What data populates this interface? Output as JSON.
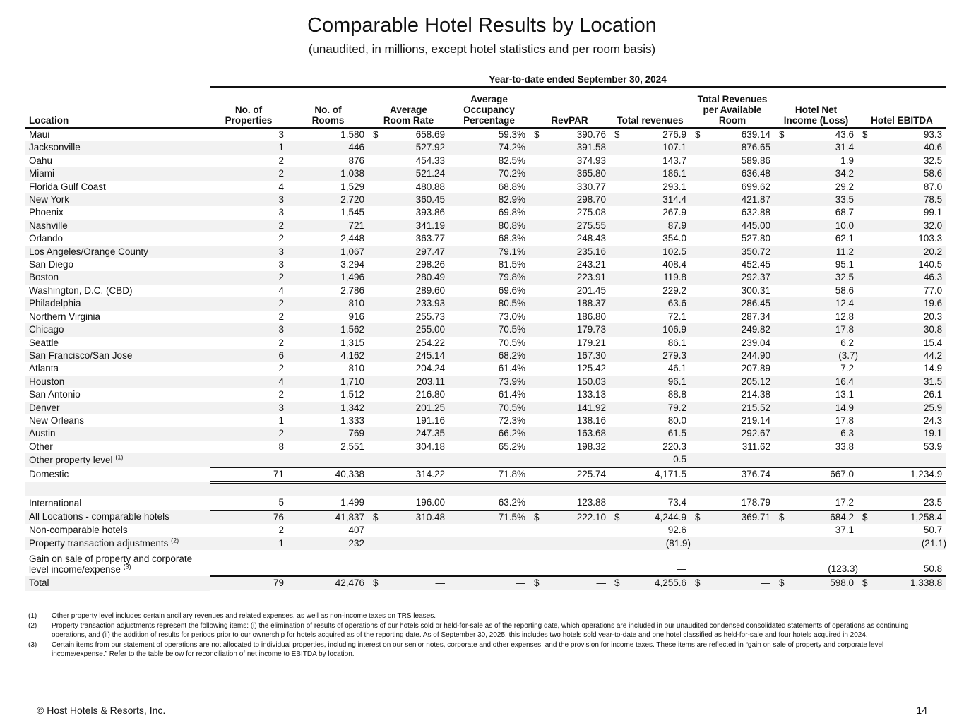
{
  "title": "Comparable Hotel Results by Location",
  "subtitle": "(unaudited, in millions, except hotel statistics and per room basis)",
  "period": "Year-to-date ended September 30, 2024",
  "columns": [
    "Location",
    "No. of\nProperties",
    "No. of\nRooms",
    "Average\nRoom Rate",
    "Average\nOccupancy\nPercentage",
    "RevPAR",
    "Total revenues",
    "Total Revenues\nper Available\nRoom",
    "Hotel Net\nIncome (Loss)",
    "Hotel EBITDA"
  ],
  "dollar_sign": "$",
  "rows": [
    {
      "loc": "Maui",
      "v": [
        "3",
        "1,580",
        "658.69",
        "59.3%",
        "390.76",
        "276.9",
        "639.14",
        "43.6",
        "93.3"
      ],
      "dollar": true
    },
    {
      "loc": "Jacksonville",
      "v": [
        "1",
        "446",
        "527.92",
        "74.2%",
        "391.58",
        "107.1",
        "876.65",
        "31.4",
        "40.6"
      ],
      "shade": true
    },
    {
      "loc": "Oahu",
      "v": [
        "2",
        "876",
        "454.33",
        "82.5%",
        "374.93",
        "143.7",
        "589.86",
        "1.9",
        "32.5"
      ]
    },
    {
      "loc": "Miami",
      "v": [
        "2",
        "1,038",
        "521.24",
        "70.2%",
        "365.80",
        "186.1",
        "636.48",
        "34.2",
        "58.6"
      ],
      "shade": true
    },
    {
      "loc": "Florida Gulf Coast",
      "v": [
        "4",
        "1,529",
        "480.88",
        "68.8%",
        "330.77",
        "293.1",
        "699.62",
        "29.2",
        "87.0"
      ]
    },
    {
      "loc": "New York",
      "v": [
        "3",
        "2,720",
        "360.45",
        "82.9%",
        "298.70",
        "314.4",
        "421.87",
        "33.5",
        "78.5"
      ],
      "shade": true
    },
    {
      "loc": "Phoenix",
      "v": [
        "3",
        "1,545",
        "393.86",
        "69.8%",
        "275.08",
        "267.9",
        "632.88",
        "68.7",
        "99.1"
      ]
    },
    {
      "loc": "Nashville",
      "v": [
        "2",
        "721",
        "341.19",
        "80.8%",
        "275.55",
        "87.9",
        "445.00",
        "10.0",
        "32.0"
      ],
      "shade": true
    },
    {
      "loc": "Orlando",
      "v": [
        "2",
        "2,448",
        "363.77",
        "68.3%",
        "248.43",
        "354.0",
        "527.80",
        "62.1",
        "103.3"
      ]
    },
    {
      "loc": "Los Angeles/Orange County",
      "v": [
        "3",
        "1,067",
        "297.47",
        "79.1%",
        "235.16",
        "102.5",
        "350.72",
        "11.2",
        "20.2"
      ],
      "shade": true
    },
    {
      "loc": "San Diego",
      "v": [
        "3",
        "3,294",
        "298.26",
        "81.5%",
        "243.21",
        "408.4",
        "452.45",
        "95.1",
        "140.5"
      ]
    },
    {
      "loc": "Boston",
      "v": [
        "2",
        "1,496",
        "280.49",
        "79.8%",
        "223.91",
        "119.8",
        "292.37",
        "32.5",
        "46.3"
      ],
      "shade": true
    },
    {
      "loc": "Washington, D.C. (CBD)",
      "v": [
        "4",
        "2,786",
        "289.60",
        "69.6%",
        "201.45",
        "229.2",
        "300.31",
        "58.6",
        "77.0"
      ]
    },
    {
      "loc": "Philadelphia",
      "v": [
        "2",
        "810",
        "233.93",
        "80.5%",
        "188.37",
        "63.6",
        "286.45",
        "12.4",
        "19.6"
      ],
      "shade": true
    },
    {
      "loc": "Northern Virginia",
      "v": [
        "2",
        "916",
        "255.73",
        "73.0%",
        "186.80",
        "72.1",
        "287.34",
        "12.8",
        "20.3"
      ]
    },
    {
      "loc": "Chicago",
      "v": [
        "3",
        "1,562",
        "255.00",
        "70.5%",
        "179.73",
        "106.9",
        "249.82",
        "17.8",
        "30.8"
      ],
      "shade": true
    },
    {
      "loc": "Seattle",
      "v": [
        "2",
        "1,315",
        "254.22",
        "70.5%",
        "179.21",
        "86.1",
        "239.04",
        "6.2",
        "15.4"
      ]
    },
    {
      "loc": "San Francisco/San Jose",
      "v": [
        "6",
        "4,162",
        "245.14",
        "68.2%",
        "167.30",
        "279.3",
        "244.90",
        "(3.7)",
        "44.2"
      ],
      "shade": true
    },
    {
      "loc": "Atlanta",
      "v": [
        "2",
        "810",
        "204.24",
        "61.4%",
        "125.42",
        "46.1",
        "207.89",
        "7.2",
        "14.9"
      ]
    },
    {
      "loc": "Houston",
      "v": [
        "4",
        "1,710",
        "203.11",
        "73.9%",
        "150.03",
        "96.1",
        "205.12",
        "16.4",
        "31.5"
      ],
      "shade": true
    },
    {
      "loc": "San Antonio",
      "v": [
        "2",
        "1,512",
        "216.80",
        "61.4%",
        "133.13",
        "88.8",
        "214.38",
        "13.1",
        "26.1"
      ]
    },
    {
      "loc": "Denver",
      "v": [
        "3",
        "1,342",
        "201.25",
        "70.5%",
        "141.92",
        "79.2",
        "215.52",
        "14.9",
        "25.9"
      ],
      "shade": true
    },
    {
      "loc": "New Orleans",
      "v": [
        "1",
        "1,333",
        "191.16",
        "72.3%",
        "138.16",
        "80.0",
        "219.14",
        "17.8",
        "24.3"
      ]
    },
    {
      "loc": "Austin",
      "v": [
        "2",
        "769",
        "247.35",
        "66.2%",
        "163.68",
        "61.5",
        "292.67",
        "6.3",
        "19.1"
      ],
      "shade": true
    },
    {
      "loc": "Other",
      "v": [
        "8",
        "2,551",
        "304.18",
        "65.2%",
        "198.32",
        "220.3",
        "311.62",
        "33.8",
        "53.9"
      ]
    },
    {
      "loc": "Other property level",
      "sup": "(1)",
      "v": [
        "",
        "",
        "",
        "",
        "",
        "0.5",
        "",
        "—",
        "—"
      ],
      "shade": true
    },
    {
      "loc": "Domestic",
      "v": [
        "71",
        "40,338",
        "314.22",
        "71.8%",
        "225.74",
        "4,171.5",
        "376.74",
        "667.0",
        "1,234.9"
      ],
      "topLine": true,
      "dblLine": true
    },
    {
      "loc": "",
      "v": [
        "",
        "",
        "",
        "",
        "",
        "",
        "",
        "",
        ""
      ],
      "shade": true
    },
    {
      "loc": "International",
      "v": [
        "5",
        "1,499",
        "196.00",
        "63.2%",
        "123.88",
        "73.4",
        "178.79",
        "17.2",
        "23.5"
      ]
    },
    {
      "loc": "All Locations - comparable hotels",
      "v": [
        "76",
        "41,837",
        "310.48",
        "71.5%",
        "222.10",
        "4,244.9",
        "369.71",
        "684.2",
        "1,258.4"
      ],
      "dollar": true,
      "topLine": true,
      "shade": true
    },
    {
      "loc": "Non-comparable hotels",
      "v": [
        "2",
        "407",
        "",
        "",
        "",
        "92.6",
        "",
        "37.1",
        "50.7"
      ]
    },
    {
      "loc": "Property transaction adjustments",
      "sup": "(2)",
      "v": [
        "1",
        "232",
        "",
        "",
        "",
        "(81.9)",
        "",
        "—",
        "(21.1)"
      ],
      "shade": true
    },
    {
      "loc": "Gain on sale of property and corporate level income/expense",
      "sup": "(3)",
      "v": [
        "",
        "",
        "",
        "",
        "",
        "—",
        "",
        "(123.3)",
        "50.8"
      ],
      "tall": true
    },
    {
      "loc": "Total",
      "v": [
        "79",
        "42,476",
        "—",
        "—",
        "—",
        "4,255.6",
        "—",
        "598.0",
        "1,338.8"
      ],
      "dollar": true,
      "topLine": true,
      "dblLine": true,
      "shade": true
    }
  ],
  "footnotes": [
    {
      "num": "(1)",
      "text": "Other property level includes certain ancillary revenues and related expenses, as well as non-income taxes on TRS leases."
    },
    {
      "num": "(2)",
      "text": "Property transaction adjustments represent the following items: (i) the elimination of results of operations of our hotels sold or held-for-sale as of the reporting date, which operations are included in our unaudited condensed consolidated statements of operations as continuing operations, and (ii) the addition of results for periods prior to our ownership for hotels acquired as of the reporting date. As of September 30, 2025, this includes two hotels sold year-to-date and one hotel classified as held-for-sale and four hotels acquired in 2024."
    },
    {
      "num": "(3)",
      "text": "Certain items from our statement of operations are not allocated to individual properties, including interest on our senior notes, corporate and other expenses, and the provision for income taxes. These items are reflected in “gain on sale of property and corporate level income/expense.” Refer to the table below for reconciliation of net income to EBITDA by location."
    }
  ],
  "footer": {
    "copyright": "© Host Hotels & Resorts, Inc.",
    "page": "14"
  }
}
